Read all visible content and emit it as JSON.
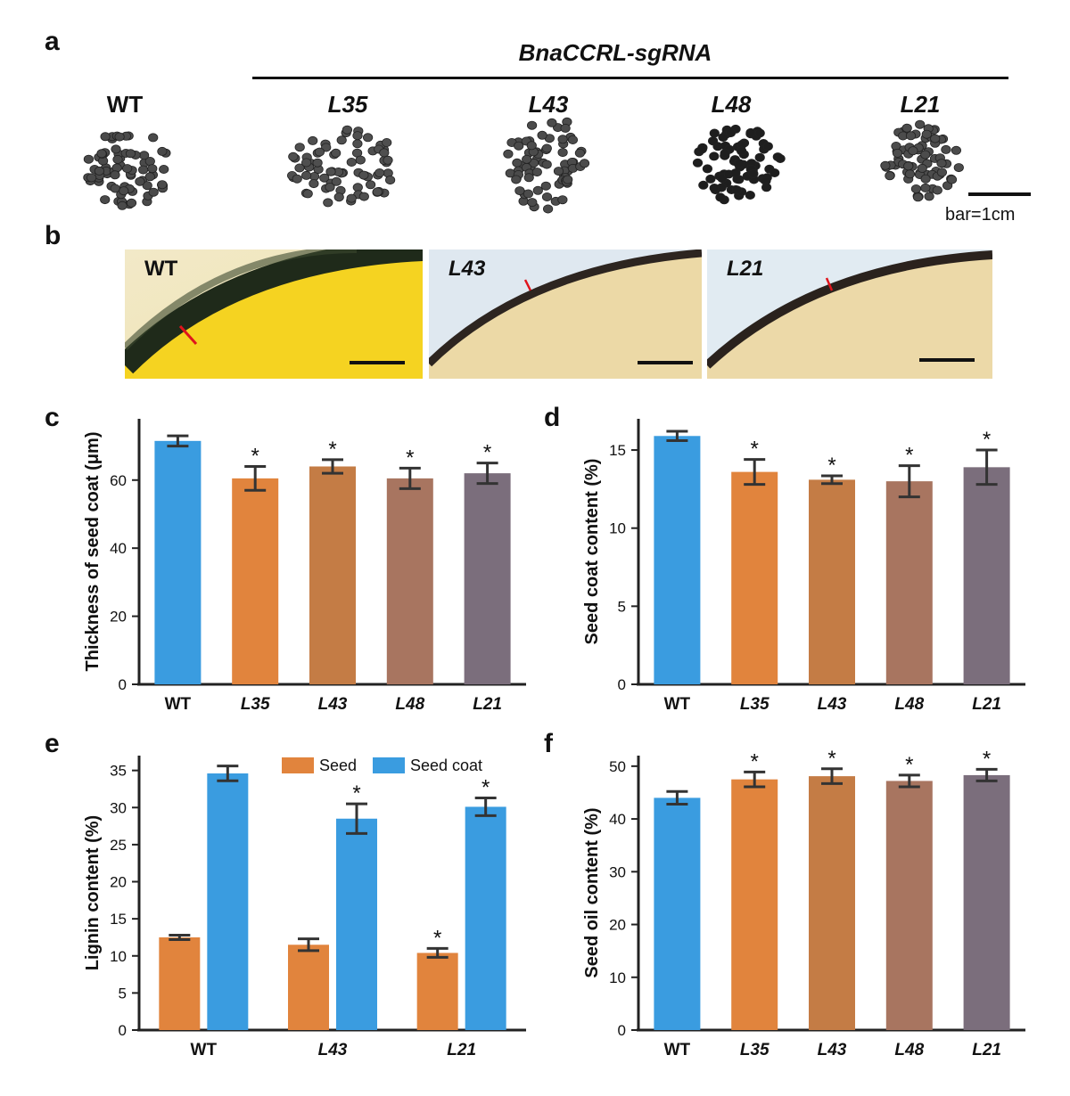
{
  "panel_a": {
    "letter": "a",
    "construct_label": "BnaCCRL-sgRNA",
    "lines": [
      "WT",
      "L35",
      "L43",
      "L48",
      "L21"
    ],
    "scale_bar_label": "bar=1cm"
  },
  "panel_b": {
    "letter": "b",
    "images": [
      "WT",
      "L43",
      "L21"
    ]
  },
  "colors": {
    "WT": "#3a9ce0",
    "L35": "#e1843d",
    "L43": "#c47c45",
    "L48": "#a87560",
    "L21": "#7b6e7c",
    "seed": "#e1843d",
    "seed_coat": "#3a9ce0"
  },
  "chart_data": [
    {
      "panel": "c",
      "type": "bar",
      "categories": [
        "WT",
        "L35",
        "L43",
        "L48",
        "L21"
      ],
      "values": [
        71.5,
        60.5,
        64,
        60.5,
        62
      ],
      "errors": [
        1.5,
        3.5,
        2,
        3,
        3
      ],
      "significant": [
        false,
        true,
        true,
        true,
        true
      ],
      "sig_marker": "*",
      "ylabel": "Thickness of seed coat (μm)",
      "ylim": [
        0,
        78
      ],
      "yticks": [
        0,
        20,
        40,
        60
      ]
    },
    {
      "panel": "d",
      "type": "bar",
      "categories": [
        "WT",
        "L35",
        "L43",
        "L48",
        "L21"
      ],
      "values": [
        15.9,
        13.6,
        13.1,
        13,
        13.9
      ],
      "errors": [
        0.3,
        0.8,
        0.25,
        1,
        1.1
      ],
      "significant": [
        false,
        true,
        true,
        true,
        true
      ],
      "sig_marker": "*",
      "ylabel": "Seed coat content (%)",
      "ylim": [
        0,
        17
      ],
      "yticks": [
        0,
        5,
        10,
        15
      ]
    },
    {
      "panel": "e",
      "type": "bar",
      "categories": [
        "WT",
        "L43",
        "L21"
      ],
      "series": [
        {
          "name": "Seed",
          "values": [
            12.5,
            11.5,
            10.4
          ],
          "errors": [
            0.3,
            0.8,
            0.6
          ],
          "significant": [
            false,
            false,
            true
          ]
        },
        {
          "name": "Seed coat",
          "values": [
            34.6,
            28.5,
            30.1
          ],
          "errors": [
            1,
            2,
            1.2
          ],
          "significant": [
            false,
            true,
            true
          ]
        }
      ],
      "sig_marker": "*",
      "ylabel": "Lignin content (%)",
      "ylim": [
        0,
        37
      ],
      "yticks": [
        0,
        5,
        10,
        15,
        20,
        25,
        30,
        35
      ],
      "legend": "top"
    },
    {
      "panel": "f",
      "type": "bar",
      "categories": [
        "WT",
        "L35",
        "L43",
        "L48",
        "L21"
      ],
      "values": [
        44,
        47.5,
        48.1,
        47.2,
        48.3
      ],
      "errors": [
        1.2,
        1.4,
        1.4,
        1.1,
        1.1
      ],
      "significant": [
        false,
        true,
        true,
        true,
        true
      ],
      "sig_marker": "*",
      "ylabel": "Seed oil content (%)",
      "ylim": [
        0,
        52
      ],
      "yticks": [
        0,
        10,
        20,
        30,
        40,
        50
      ]
    }
  ]
}
